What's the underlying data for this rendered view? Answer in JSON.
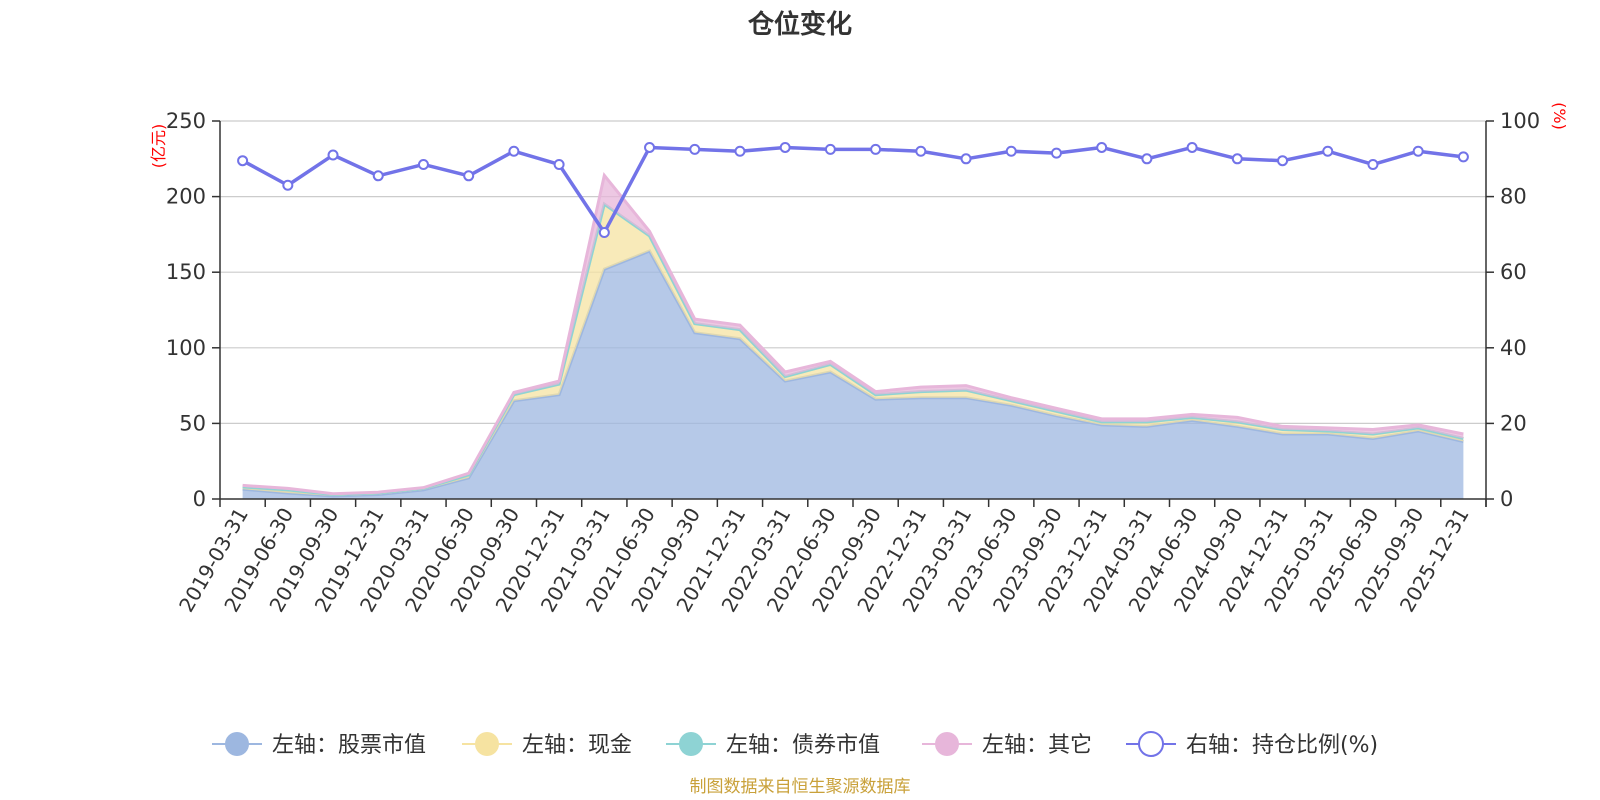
{
  "chart_data": {
    "type": "area",
    "title": "仓位变化",
    "left_axis_unit": "(亿元)",
    "right_axis_unit": "(%)",
    "left_ylim": [
      0,
      250
    ],
    "left_yticks": [
      "0",
      "50",
      "100",
      "150",
      "200",
      "250"
    ],
    "right_ylim": [
      0,
      100
    ],
    "right_yticks": [
      "0",
      "20",
      "40",
      "60",
      "80",
      "100"
    ],
    "categories": [
      "2019-03-31",
      "2019-06-30",
      "2019-09-30",
      "2019-12-31",
      "2020-03-31",
      "2020-06-30",
      "2020-09-30",
      "2020-12-31",
      "2021-03-31",
      "2021-06-30",
      "2021-09-30",
      "2021-12-31",
      "2022-03-31",
      "2022-06-30",
      "2022-09-30",
      "2022-12-31",
      "2023-03-31",
      "2023-06-30",
      "2023-09-30",
      "2023-12-31",
      "2024-03-31",
      "2024-06-30",
      "2024-09-30",
      "2024-12-31",
      "2025-03-31",
      "2025-06-30",
      "2025-09-30",
      "2025-12-31"
    ],
    "series": [
      {
        "name": "左轴：股票市值",
        "axis": "left",
        "type": "stacked-area",
        "color": "#9db7e0",
        "values": [
          6.5,
          4,
          2,
          3,
          6,
          14,
          65,
          69,
          152,
          164,
          110,
          106,
          78,
          84,
          66,
          67,
          67,
          62,
          55,
          49,
          48,
          52,
          48,
          43,
          43,
          40,
          45,
          38
        ]
      },
      {
        "name": "左轴：现金",
        "axis": "left",
        "type": "stacked-area",
        "color": "#f6e3a1",
        "values": [
          1.5,
          2,
          1,
          1,
          1,
          2,
          4,
          7,
          43,
          10,
          6,
          6,
          3,
          5,
          3,
          4,
          5,
          3,
          3,
          2,
          3,
          2,
          3,
          3,
          2,
          3,
          2,
          2
        ]
      },
      {
        "name": "左轴：债券市值",
        "axis": "left",
        "type": "stacked-area",
        "color": "#8ed3d4",
        "values": [
          0,
          0,
          0,
          0,
          0,
          0,
          0,
          0,
          0,
          0,
          0,
          0,
          0,
          0,
          0,
          0,
          0,
          0,
          0,
          0,
          0,
          0,
          0,
          0,
          0,
          0,
          0,
          0
        ]
      },
      {
        "name": "左轴：其它",
        "axis": "left",
        "type": "stacked-area",
        "color": "#e7b6da",
        "values": [
          1,
          1,
          0.5,
          0.5,
          0.5,
          1,
          1.5,
          2,
          19,
          3,
          3,
          3,
          3,
          2,
          2,
          3,
          3,
          2,
          2,
          2,
          2,
          2,
          3,
          2,
          2,
          3,
          2,
          3
        ]
      },
      {
        "name": "右轴：持仓比例(%)",
        "axis": "right",
        "type": "line",
        "color": "#7273e8",
        "values": [
          89.5,
          83,
          91,
          85.5,
          88.5,
          85.5,
          92,
          88.5,
          70.5,
          93,
          92.5,
          92,
          93,
          92.5,
          92.5,
          92,
          90,
          92,
          91.5,
          93,
          90,
          93,
          90,
          89.5,
          92,
          88.5,
          92,
          90.5
        ]
      }
    ]
  },
  "source_text": "制图数据来自恒生聚源数据库"
}
